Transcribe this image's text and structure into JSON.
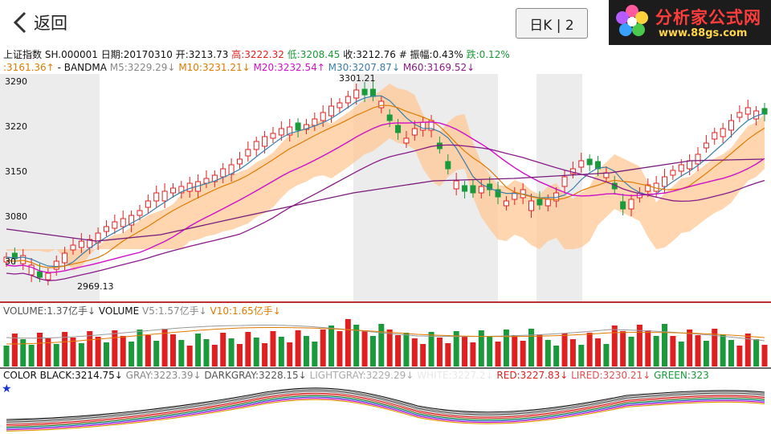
{
  "header": {
    "back_label": "返回",
    "period_button": "日K | 2",
    "logo_text": "分析家公式网",
    "logo_url": "www.88gs.com"
  },
  "quote": {
    "name": "上证指数",
    "code": "SH.000001",
    "date_label": "日期:20170310",
    "open_label": "开:3213.73",
    "high_label": "高:3222.32",
    "low_label": "低:3208.45",
    "close_label": "收:3212.76",
    "amp_label": "# 振幅:0.43%",
    "change_label": "跌:0.12%"
  },
  "indicators": {
    "first": ":3161.36↑",
    "bandma": "- BANDMA",
    "m5": "M5:3229.29↓",
    "m10": "M10:3231.21↓",
    "m20": "M20:3232.54↑",
    "m30": "M30:3207.87↓",
    "m60": "M60:3169.52↓"
  },
  "price_axis": [
    "3290",
    "3220",
    "3150",
    "3080",
    "30"
  ],
  "annotations": {
    "high": "3301.21",
    "low": "2969.13"
  },
  "volume": {
    "vol": "VOLUME:1.37亿手↓",
    "title": "VOLUME",
    "v5": "V5:1.57亿手↓",
    "v10": "V10:1.65亿手↓"
  },
  "color_indicator": {
    "black": "COLOR BLACK:3214.75↓",
    "gray": "GRAY:3223.39↓",
    "darkgray": "DARKGRAY:3228.15↓",
    "lightgray": "LIGHTGRAY:3229.29↓",
    "white": "WHITE:3227.2↓",
    "red": "RED:3227.83↓",
    "lired": "LIRED:3230.21↓",
    "green": "GREEN:323"
  },
  "colors": {
    "up": "#e02020",
    "down": "#1a9a3a",
    "band": "#ffc896",
    "bg_alt": "#ececec"
  }
}
